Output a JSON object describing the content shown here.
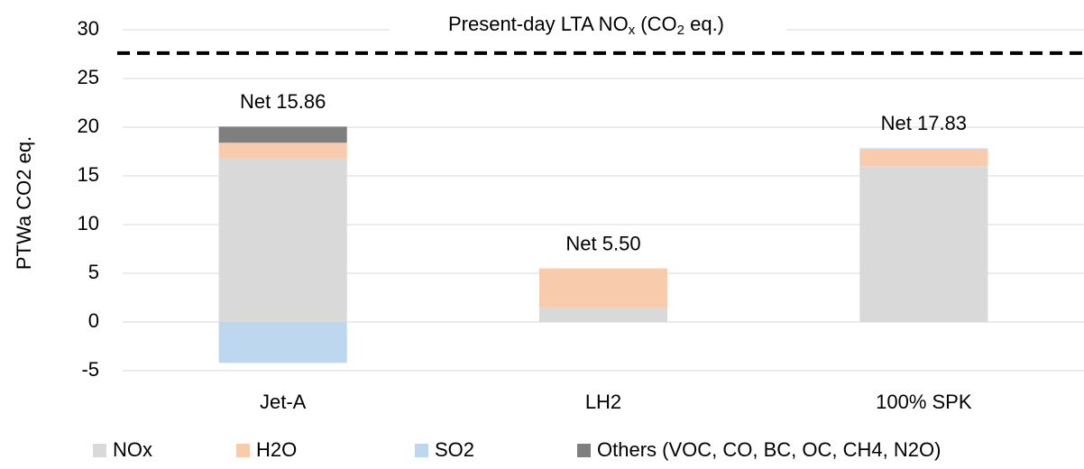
{
  "chart_data": {
    "type": "bar",
    "stacked": true,
    "ylabel": "PTWa CO2 eq.",
    "categories": [
      "Jet-A",
      "LH2",
      "100% SPK"
    ],
    "series": [
      {
        "name": "NOx",
        "color": "#d9d9d9",
        "values": [
          16.8,
          1.5,
          16.0
        ]
      },
      {
        "name": "H2O",
        "color": "#f8cbad",
        "values": [
          1.6,
          4.0,
          1.7
        ]
      },
      {
        "name": "SO2",
        "color": "#bdd7ee",
        "values": [
          -4.2,
          0,
          0.13
        ]
      },
      {
        "name": "Others (VOC, CO, BC, OC, CH4, N2O)",
        "color": "#7f7f7f",
        "values": [
          1.66,
          0,
          0
        ]
      }
    ],
    "net_labels": [
      "Net 15.86",
      "Net 5.50",
      "Net 17.83"
    ],
    "reference_line": {
      "value": 27.6,
      "label_parts": [
        "Present-day LTA NO",
        "x",
        " (CO",
        "2",
        " eq.)"
      ]
    },
    "ylim": [
      -5,
      30
    ],
    "yticks": [
      -5,
      0,
      5,
      10,
      15,
      20,
      25,
      30
    ],
    "grid": true,
    "legend": "bottom"
  }
}
